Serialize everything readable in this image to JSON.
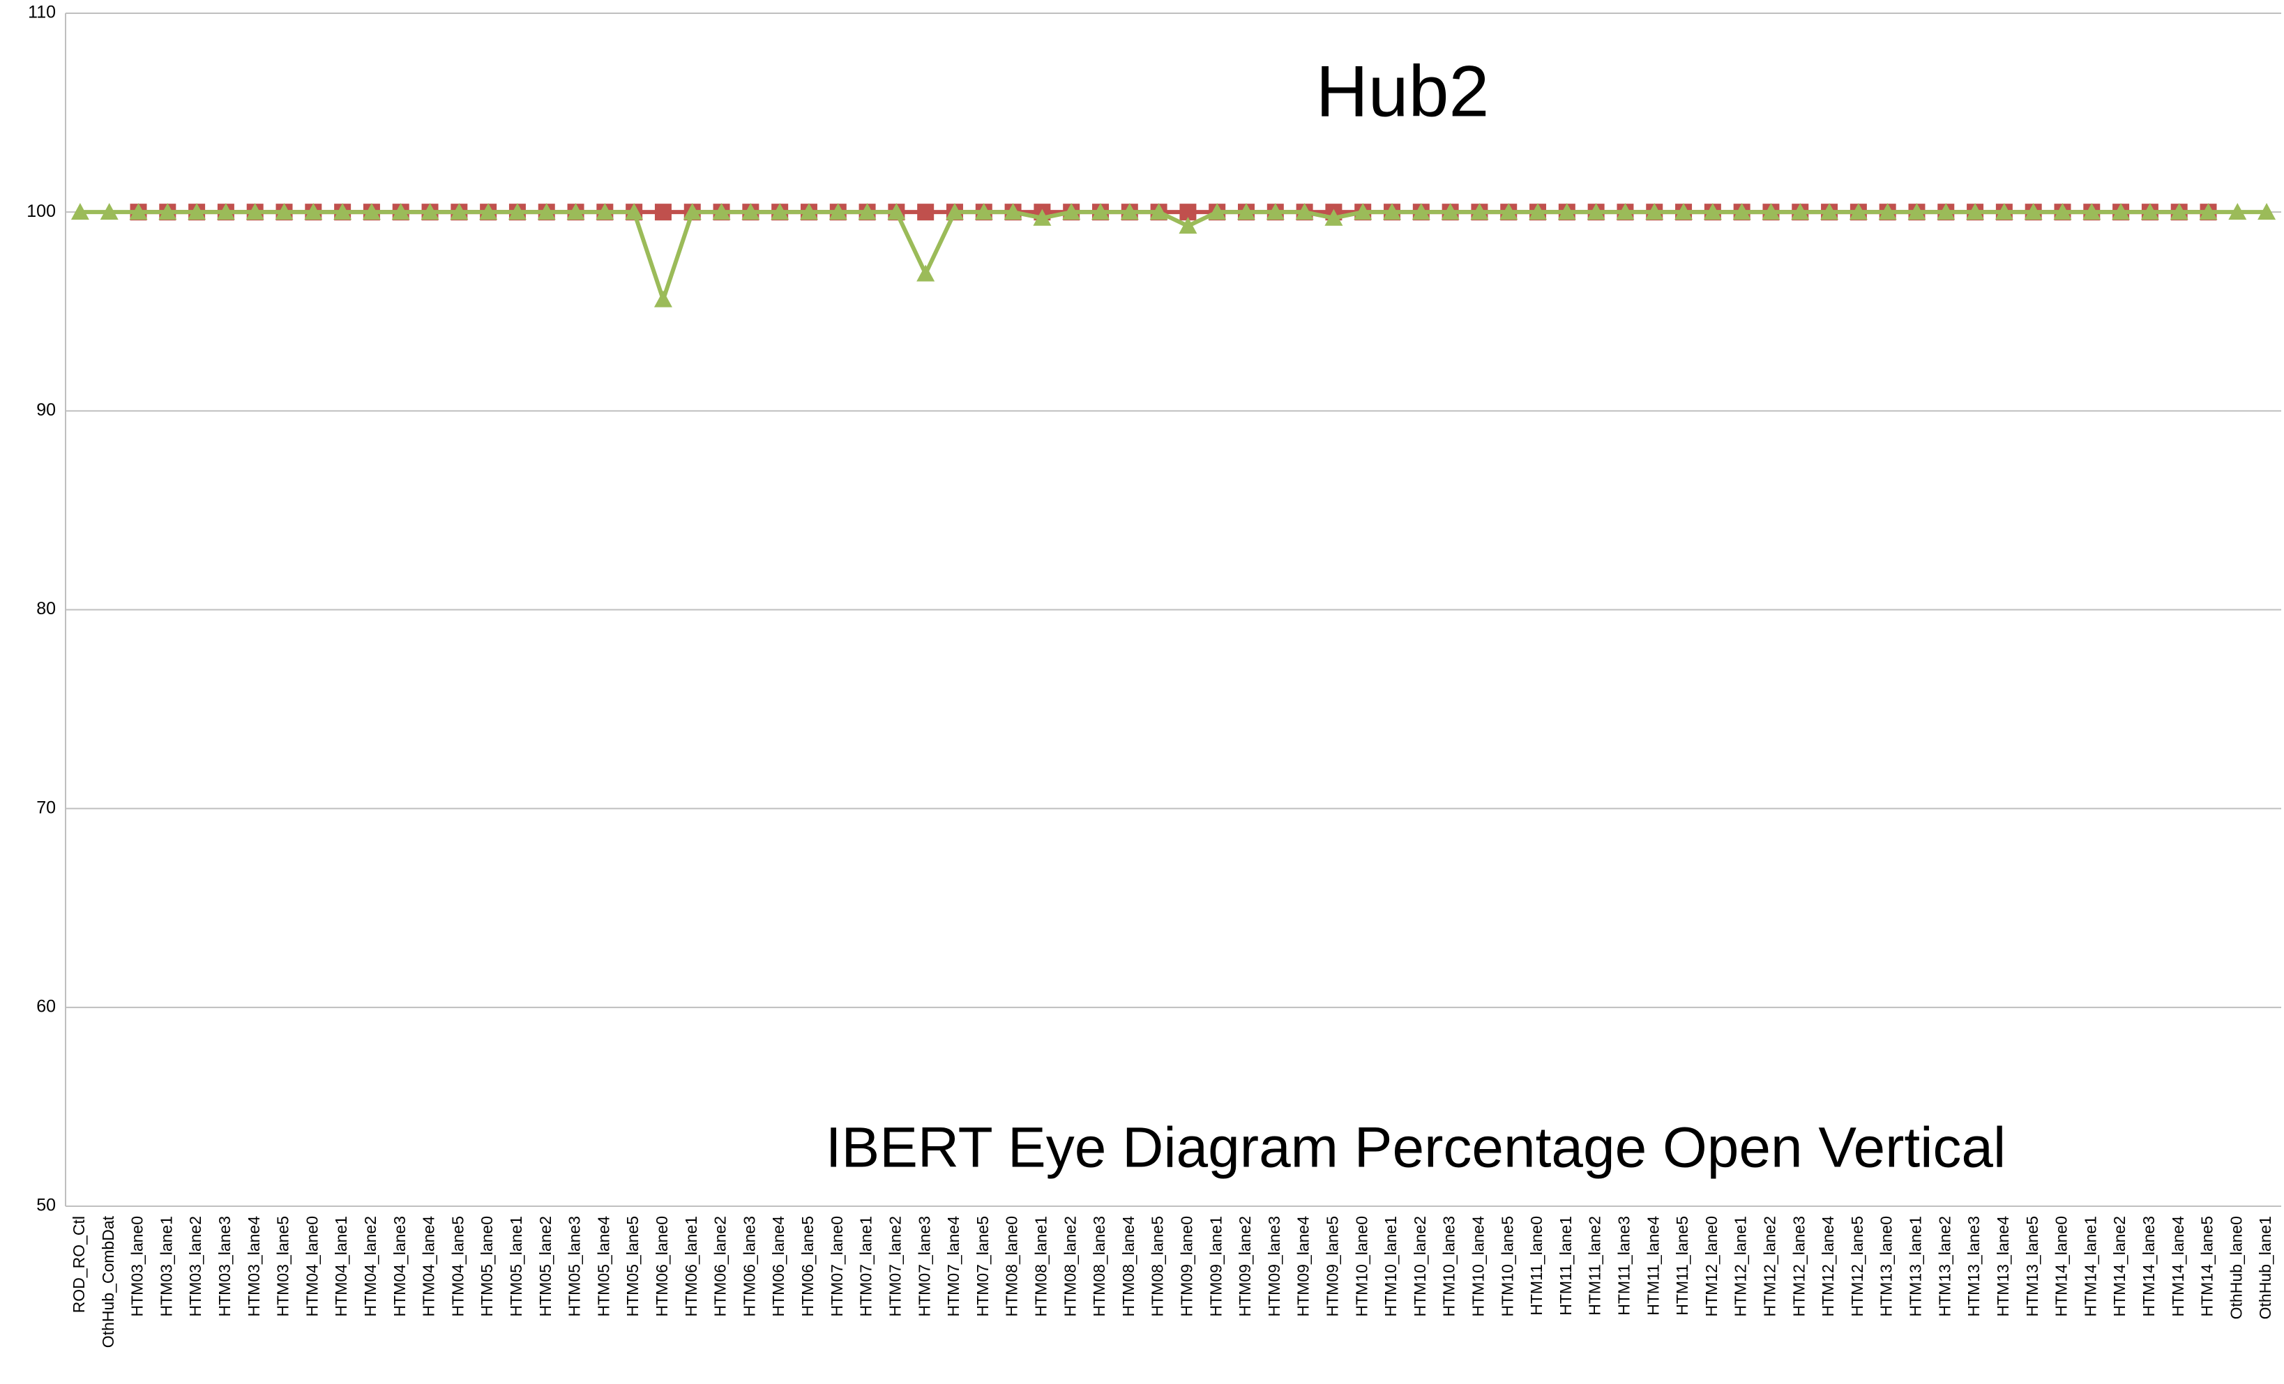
{
  "chart_data": {
    "type": "line",
    "title": "Hub2",
    "annotation": "IBERT Eye Diagram Percentage Open Vertical",
    "categories": [
      "ROD_RO_Ctl",
      "OthHub_CombDat",
      "HTM03_lane0",
      "HTM03_lane1",
      "HTM03_lane2",
      "HTM03_lane3",
      "HTM03_lane4",
      "HTM03_lane5",
      "HTM04_lane0",
      "HTM04_lane1",
      "HTM04_lane2",
      "HTM04_lane3",
      "HTM04_lane4",
      "HTM04_lane5",
      "HTM05_lane0",
      "HTM05_lane1",
      "HTM05_lane2",
      "HTM05_lane3",
      "HTM05_lane4",
      "HTM05_lane5",
      "HTM06_lane0",
      "HTM06_lane1",
      "HTM06_lane2",
      "HTM06_lane3",
      "HTM06_lane4",
      "HTM06_lane5",
      "HTM07_lane0",
      "HTM07_lane1",
      "HTM07_lane2",
      "HTM07_lane3",
      "HTM07_lane4",
      "HTM07_lane5",
      "HTM08_lane0",
      "HTM08_lane1",
      "HTM08_lane2",
      "HTM08_lane3",
      "HTM08_lane4",
      "HTM08_lane5",
      "HTM09_lane0",
      "HTM09_lane1",
      "HTM09_lane2",
      "HTM09_lane3",
      "HTM09_lane4",
      "HTM09_lane5",
      "HTM10_lane0",
      "HTM10_lane1",
      "HTM10_lane2",
      "HTM10_lane3",
      "HTM10_lane4",
      "HTM10_lane5",
      "HTM11_lane0",
      "HTM11_lane1",
      "HTM11_lane2",
      "HTM11_lane3",
      "HTM11_lane4",
      "HTM11_lane5",
      "HTM12_lane0",
      "HTM12_lane1",
      "HTM12_lane2",
      "HTM12_lane3",
      "HTM12_lane4",
      "HTM12_lane5",
      "HTM13_lane0",
      "HTM13_lane1",
      "HTM13_lane2",
      "HTM13_lane3",
      "HTM13_lane4",
      "HTM13_lane5",
      "HTM14_lane0",
      "HTM14_lane1",
      "HTM14_lane2",
      "HTM14_lane3",
      "HTM14_lane4",
      "HTM14_lane5",
      "OthHub_lane0",
      "OthHub_lane1"
    ],
    "series": [
      {
        "color": "#c0504d",
        "marker": "square",
        "values": [
          null,
          null,
          100,
          100,
          100,
          100,
          100,
          100,
          100,
          100,
          100,
          100,
          100,
          100,
          100,
          100,
          100,
          100,
          100,
          100,
          100,
          100,
          100,
          100,
          100,
          100,
          100,
          100,
          100,
          100,
          100,
          100,
          100,
          100,
          100,
          100,
          100,
          100,
          100,
          100,
          100,
          100,
          100,
          100,
          100,
          100,
          100,
          100,
          100,
          100,
          100,
          100,
          100,
          100,
          100,
          100,
          100,
          100,
          100,
          100,
          100,
          100,
          100,
          100,
          100,
          100,
          100,
          100,
          100,
          100,
          100,
          100,
          100,
          100,
          null,
          null
        ]
      },
      {
        "color": "#9bbb59",
        "marker": "triangle",
        "values": [
          100,
          100,
          100,
          100,
          100,
          100,
          100,
          100,
          100,
          100,
          100,
          100,
          100,
          100,
          100,
          100,
          100,
          100,
          100,
          100,
          95.6,
          100,
          100,
          100,
          100,
          100,
          100,
          100,
          100,
          96.9,
          100,
          100,
          100,
          99.7,
          100,
          100,
          100,
          100,
          99.3,
          100,
          100,
          100,
          100,
          99.7,
          100,
          100,
          100,
          100,
          100,
          100,
          100,
          100,
          100,
          100,
          100,
          100,
          100,
          100,
          100,
          100,
          100,
          100,
          100,
          100,
          100,
          100,
          100,
          100,
          100,
          100,
          100,
          100,
          100,
          100,
          100,
          100
        ]
      }
    ],
    "ylim": [
      50,
      110
    ],
    "yticks": [
      50,
      60,
      70,
      80,
      90,
      100,
      110
    ],
    "grid": true
  }
}
